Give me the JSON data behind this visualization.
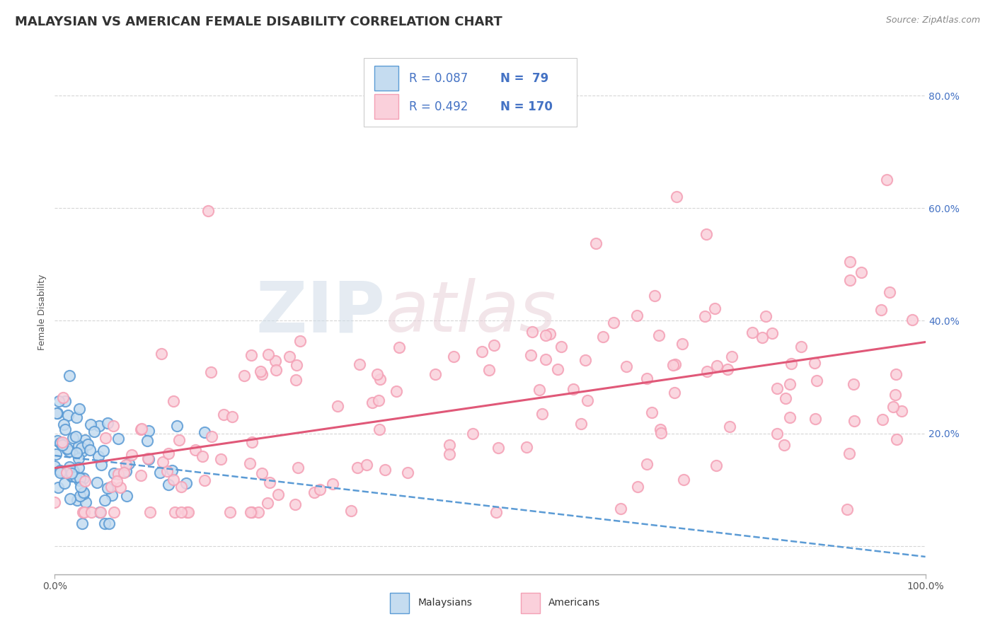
{
  "title": "MALAYSIAN VS AMERICAN FEMALE DISABILITY CORRELATION CHART",
  "source": "Source: ZipAtlas.com",
  "ylabel": "Female Disability",
  "xlim": [
    0.0,
    1.0
  ],
  "ylim": [
    -0.05,
    0.88
  ],
  "yticks": [
    0.0,
    0.2,
    0.4,
    0.6,
    0.8
  ],
  "ytick_labels": [
    "",
    "20.0%",
    "40.0%",
    "60.0%",
    "80.0%"
  ],
  "legend_r_mal": "R = 0.087",
  "legend_n_mal": "N =  79",
  "legend_r_amer": "R = 0.492",
  "legend_n_amer": "N = 170",
  "malaysian_color": "#5b9bd5",
  "american_color": "#f4a0b5",
  "malaysian_line_color": "#5b9bd5",
  "american_line_color": "#e05878",
  "background_color": "#ffffff",
  "grid_color": "#cccccc",
  "watermark_color": "#d0dce8",
  "watermark_color2": "#e8d0d8",
  "title_fontsize": 13,
  "axis_label_fontsize": 9,
  "tick_fontsize": 10,
  "legend_fontsize": 12,
  "scatter_size": 120,
  "scatter_linewidth": 1.5
}
